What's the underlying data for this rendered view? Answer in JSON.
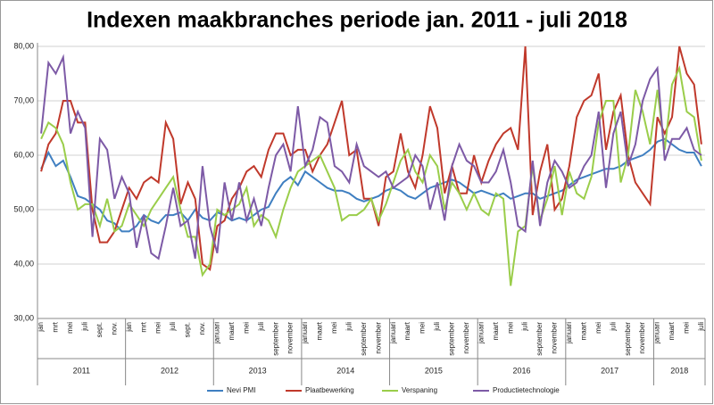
{
  "chart_data": {
    "type": "line",
    "title": "Indexen maakbranches periode jan. 2011 - juli 2018",
    "categories": [
      "jan",
      null,
      "mrt",
      null,
      "mei",
      null,
      "juli",
      null,
      "sept.",
      null,
      "nov.",
      null,
      "jan",
      null,
      "mrt",
      null,
      "mei",
      null,
      "juli",
      null,
      "sept.",
      null,
      "nov.",
      null,
      "januari",
      null,
      "maart",
      null,
      "mei",
      null,
      "juli",
      null,
      "september",
      null,
      "november",
      null,
      "januari",
      null,
      "maart",
      null,
      "mei",
      null,
      "juli",
      null,
      "september",
      null,
      "november",
      null,
      "januari",
      null,
      "maart",
      null,
      "mei",
      null,
      "juli",
      null,
      "september",
      null,
      "november",
      null,
      "januari",
      null,
      "maart",
      null,
      "mei",
      null,
      "juli",
      null,
      "september",
      null,
      "november",
      null,
      "januari",
      null,
      "maart",
      null,
      "mei",
      null,
      "juli",
      null,
      "september",
      null,
      "november",
      null,
      "januari",
      null,
      "maart",
      null,
      "mei",
      null,
      "juli"
    ],
    "years": [
      "2011",
      "2012",
      "2013",
      "2014",
      "2015",
      "2016",
      "2017",
      "2018"
    ],
    "series": [
      {
        "name": "Nevi PMI",
        "color": "#3f7fc1",
        "values": [
          57.5,
          60.5,
          58,
          59,
          56,
          52.5,
          52,
          51,
          50,
          48,
          47.5,
          46,
          46,
          47,
          49,
          48,
          47.5,
          49,
          49,
          49.5,
          48,
          50,
          48.5,
          48,
          49.5,
          49,
          48,
          48.5,
          48,
          49,
          50,
          50.5,
          53,
          55,
          56,
          54.5,
          57,
          56,
          55,
          54,
          53.5,
          53.5,
          53,
          52,
          51.5,
          52,
          52.5,
          53.5,
          54,
          53.5,
          52.5,
          52,
          53,
          54,
          54.5,
          55,
          55.5,
          55,
          54,
          53,
          53.5,
          53,
          52.5,
          53,
          52,
          52.5,
          53,
          53,
          52,
          52.5,
          53,
          53.5,
          54.5,
          55.5,
          56,
          56.5,
          57,
          57.5,
          57.5,
          58,
          59,
          59.5,
          60,
          61,
          62.5,
          63,
          62,
          61,
          60.5,
          60.5,
          58
        ]
      },
      {
        "name": "Plaatbewerking",
        "color": "#c0392b",
        "values": [
          57,
          62,
          64,
          70,
          70,
          66,
          66,
          50,
          44,
          44,
          46,
          50,
          54,
          52,
          55,
          56,
          55,
          66,
          63,
          51,
          55,
          52,
          40,
          39,
          47,
          48,
          52,
          54,
          57,
          58,
          56,
          61,
          64,
          64,
          60,
          61,
          61,
          57,
          60,
          62,
          66,
          70,
          60,
          61,
          52,
          52,
          47,
          56,
          57,
          64,
          57,
          54,
          60,
          69,
          65,
          53,
          58,
          53,
          53,
          60,
          55,
          59,
          62,
          64,
          65,
          61,
          80,
          49,
          57,
          62,
          50,
          52,
          58,
          67,
          70,
          71,
          75,
          61,
          68,
          71,
          60,
          55,
          53,
          51,
          67,
          64,
          67,
          80,
          75,
          73,
          62
        ]
      },
      {
        "name": "Verspaning",
        "color": "#9acd4a",
        "values": [
          63,
          66,
          65,
          62,
          55,
          50,
          51,
          51,
          47,
          52,
          46,
          47,
          51,
          49,
          47,
          50,
          52,
          54,
          56,
          50,
          45,
          45,
          38,
          40,
          50,
          49,
          50,
          51,
          54,
          47,
          49,
          48,
          45,
          50,
          54,
          57,
          58,
          59,
          60,
          57,
          54,
          48,
          49,
          49,
          50,
          52,
          48,
          51,
          55,
          59,
          61,
          57,
          55,
          60,
          58,
          50,
          55,
          53,
          50,
          53,
          50,
          49,
          53,
          52,
          36,
          46,
          47,
          58,
          48,
          52,
          58,
          49,
          57,
          53,
          52,
          56,
          66,
          70,
          70,
          55,
          60,
          72,
          68,
          62,
          72,
          61,
          73,
          76,
          68,
          67,
          59
        ]
      },
      {
        "name": "Productietechnologie",
        "color": "#7d5aa6",
        "values": [
          64,
          77,
          75,
          78,
          64,
          68,
          65,
          45,
          63,
          61,
          52,
          56,
          53,
          43,
          49,
          42,
          41,
          47,
          54,
          47,
          48,
          41,
          58,
          47,
          42,
          55,
          48,
          55,
          48,
          52,
          47,
          54,
          60,
          62,
          57,
          69,
          58,
          61,
          67,
          66,
          58,
          57,
          55,
          62,
          58,
          57,
          56,
          57,
          54,
          55,
          56,
          60,
          58,
          50,
          55,
          48,
          58,
          62,
          59,
          58,
          55,
          55,
          57,
          61,
          55,
          47,
          46,
          59,
          47,
          55,
          59,
          57,
          54,
          55,
          58,
          60,
          68,
          54,
          64,
          68,
          58,
          62,
          70,
          74,
          76,
          59,
          63,
          63,
          65,
          61,
          60
        ]
      }
    ],
    "ylim": [
      30,
      80
    ],
    "yticks": [
      {
        "value": 30,
        "label": "30,00"
      },
      {
        "value": 40,
        "label": "40,00"
      },
      {
        "value": 50,
        "label": "50,00"
      },
      {
        "value": 60,
        "label": "60,00"
      },
      {
        "value": 70,
        "label": "70,00"
      },
      {
        "value": 80,
        "label": "80,00"
      }
    ],
    "grid": true
  }
}
